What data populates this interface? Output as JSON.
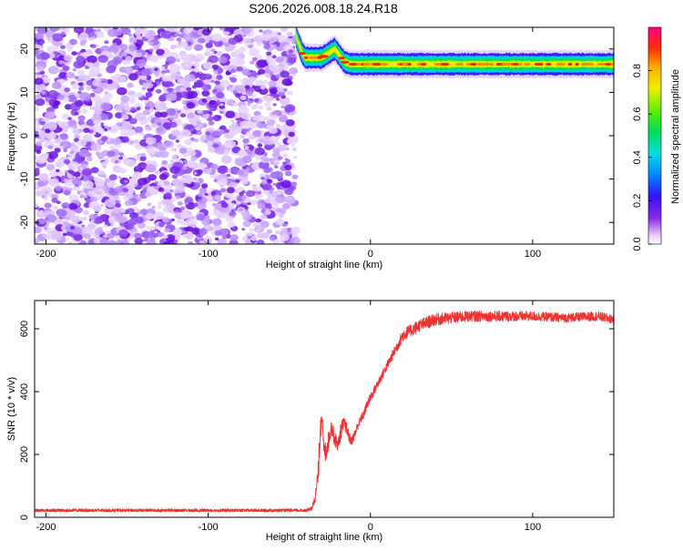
{
  "title": "S206.2026.008.18.24.R18",
  "chart_data": [
    {
      "type": "heatmap",
      "xlabel": "Height of straight line (km)",
      "ylabel": "Frequency (Hz)",
      "xlim": [
        -207,
        150
      ],
      "ylim": [
        -25,
        25
      ],
      "x_ticks": [
        -200,
        -100,
        0,
        100
      ],
      "y_ticks": [
        20,
        10,
        0,
        -10,
        -20
      ],
      "x_tick_labels": [
        "-200",
        "-100",
        "0",
        "100"
      ],
      "y_tick_labels": [
        "20",
        "10",
        "0",
        "-10",
        "-20"
      ],
      "noise_region_x": [
        -207,
        -46
      ],
      "signal_track": {
        "x": [
          -46,
          -44,
          -42,
          -40,
          -36,
          -30,
          -26,
          -22,
          -20,
          -16,
          -12,
          -8,
          0,
          20,
          40,
          60,
          80,
          100,
          120,
          140,
          150
        ],
        "freq_hz": [
          23,
          21,
          19,
          18,
          18,
          18,
          19,
          20,
          19,
          17,
          16.5,
          16.5,
          16.5,
          16.5,
          16.5,
          16.5,
          16.5,
          16.5,
          16.5,
          16.5,
          16.5
        ]
      },
      "colorbar": {
        "label": "Normalized spectral amplitude",
        "range": [
          0,
          1
        ],
        "ticks": [
          0.0,
          0.2,
          0.4,
          0.6,
          0.8
        ],
        "tick_labels": [
          "0.0",
          "0.2",
          "0.4",
          "0.6",
          "0.8"
        ]
      }
    },
    {
      "type": "line",
      "xlabel": "Height of straight line (km)",
      "ylabel": "SNR (10 * v/v)",
      "xlim": [
        -207,
        150
      ],
      "ylim": [
        0,
        690
      ],
      "x_ticks": [
        -200,
        -100,
        0,
        100
      ],
      "y_ticks": [
        0,
        200,
        400,
        600
      ],
      "x_tick_labels": [
        "-200",
        "-100",
        "0",
        "100"
      ],
      "y_tick_labels": [
        "0",
        "200",
        "400",
        "600"
      ],
      "series": [
        {
          "name": "SNR",
          "color": "#ee3333",
          "x": [
            -207,
            -100,
            -40,
            -36,
            -34,
            -32,
            -31,
            -30,
            -29,
            -28,
            -26,
            -24,
            -22,
            -20,
            -18,
            -16,
            -14,
            -12,
            -10,
            -8,
            -6,
            -4,
            -2,
            0,
            4,
            8,
            12,
            16,
            20,
            30,
            40,
            60,
            80,
            100,
            120,
            140,
            150
          ],
          "y": [
            20,
            20,
            20,
            25,
            60,
            150,
            280,
            340,
            230,
            200,
            240,
            290,
            250,
            230,
            280,
            300,
            270,
            240,
            260,
            290,
            310,
            330,
            360,
            380,
            420,
            460,
            500,
            540,
            580,
            610,
            630,
            640,
            640,
            640,
            635,
            640,
            630
          ],
          "noise": [
            10,
            10,
            10,
            12,
            40,
            80,
            120,
            60,
            50,
            70,
            60,
            50,
            50,
            40,
            60,
            40,
            40,
            30,
            30,
            30,
            30,
            30,
            30,
            30,
            30,
            30,
            30,
            35,
            40,
            40,
            40,
            35,
            35,
            30,
            30,
            30,
            30
          ]
        }
      ]
    }
  ],
  "colors": {
    "line": "#ee3333",
    "noise_purple": "#6a0ddd",
    "axis": "#000000"
  }
}
